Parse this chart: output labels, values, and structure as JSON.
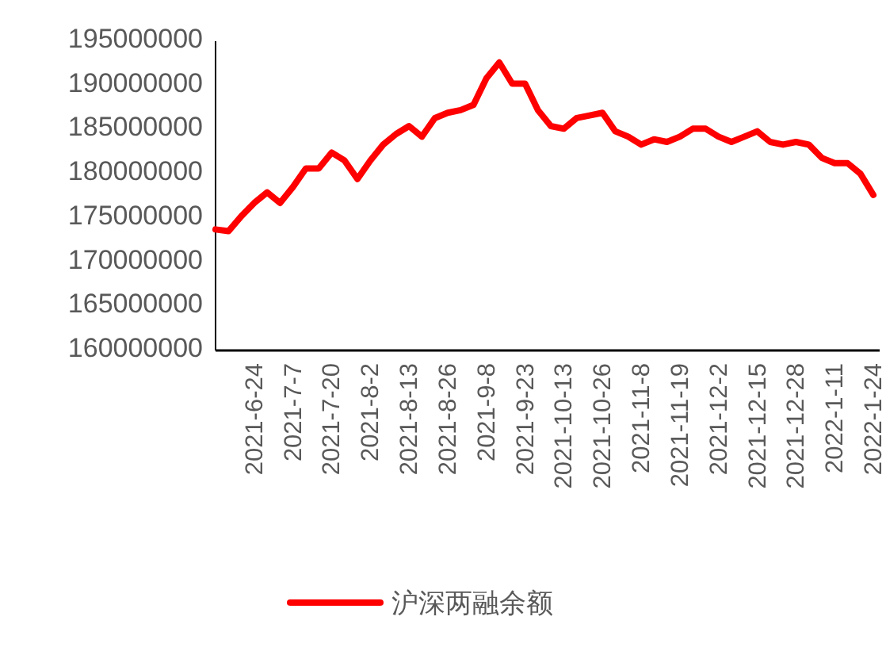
{
  "chart_data": {
    "type": "line",
    "categories": [
      null,
      null,
      null,
      "2021-6-24",
      null,
      null,
      "2021-7-7",
      null,
      null,
      "2021-7-20",
      null,
      null,
      "2021-8-2",
      null,
      null,
      "2021-8-13",
      null,
      null,
      "2021-8-26",
      null,
      null,
      "2021-9-8",
      null,
      null,
      "2021-9-23",
      null,
      null,
      "2021-10-13",
      null,
      null,
      "2021-10-26",
      null,
      null,
      "2021-11-8",
      null,
      null,
      "2021-11-19",
      null,
      null,
      "2021-12-2",
      null,
      null,
      "2021-12-15",
      null,
      null,
      "2021-12-28",
      null,
      null,
      "2022-1-11",
      null,
      null,
      "2022-1-24"
    ],
    "series": [
      {
        "name": "沪深两融余额",
        "color": "#ff0000",
        "values": [
          173700000,
          173500000,
          175200000,
          176700000,
          177900000,
          176700000,
          178500000,
          180600000,
          180600000,
          182400000,
          181500000,
          179400000,
          181500000,
          183300000,
          184500000,
          185400000,
          184200000,
          186300000,
          186900000,
          187200000,
          187800000,
          190800000,
          192600000,
          190200000,
          190200000,
          187200000,
          185400000,
          185100000,
          186300000,
          186600000,
          186900000,
          184800000,
          184200000,
          183300000,
          183900000,
          183600000,
          184200000,
          185100000,
          185100000,
          184200000,
          183600000,
          184200000,
          184800000,
          183600000,
          183300000,
          183600000,
          183300000,
          181800000,
          181200000,
          181200000,
          180000000,
          177600000
        ]
      }
    ],
    "ylim": [
      160000000,
      195000000
    ],
    "yticks": [
      160000000,
      165000000,
      170000000,
      175000000,
      180000000,
      185000000,
      190000000,
      195000000
    ],
    "grid": false,
    "legend": "bottom",
    "marker": "none",
    "line_style": "solid"
  }
}
